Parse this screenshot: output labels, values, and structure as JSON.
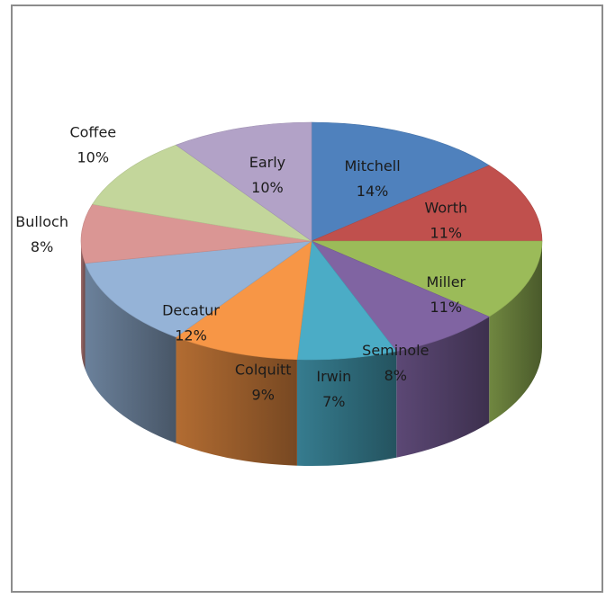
{
  "chart_data": {
    "type": "pie",
    "title": "",
    "style": "3d-exploded-free",
    "slices": [
      {
        "label": "Mitchell",
        "value": 14,
        "display": "14%",
        "color": "#4f81bd",
        "label_pos": "inside"
      },
      {
        "label": "Worth",
        "value": 11,
        "display": "11%",
        "color": "#c0504d",
        "label_pos": "inside"
      },
      {
        "label": "Miller",
        "value": 11,
        "display": "11%",
        "color": "#9bbb59",
        "label_pos": "inside"
      },
      {
        "label": "Seminole",
        "value": 8,
        "display": "8%",
        "color": "#8064a2",
        "label_pos": "inside"
      },
      {
        "label": "Irwin",
        "value": 7,
        "display": "7%",
        "color": "#4bacc6",
        "label_pos": "inside"
      },
      {
        "label": "Colquitt",
        "value": 9,
        "display": "9%",
        "color": "#f79646",
        "label_pos": "inside"
      },
      {
        "label": "Decatur",
        "value": 12,
        "display": "12%",
        "color": "#95b3d7",
        "label_pos": "inside"
      },
      {
        "label": "Bulloch",
        "value": 8,
        "display": "8%",
        "color": "#da9694",
        "label_pos": "outside"
      },
      {
        "label": "Coffee",
        "value": 10,
        "display": "10%",
        "color": "#c3d69b",
        "label_pos": "outside"
      },
      {
        "label": "Early",
        "value": 10,
        "display": "10%",
        "color": "#b2a2c7",
        "label_pos": "inside"
      }
    ]
  }
}
